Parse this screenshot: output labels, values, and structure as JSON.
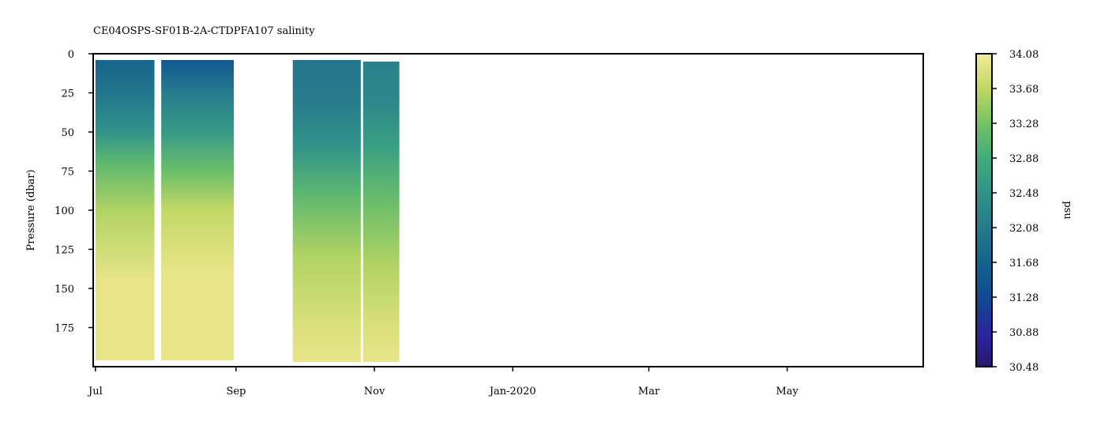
{
  "chart_data": {
    "type": "heatmap",
    "title": "CE04OSPS-SF01B-2A-CTDPFA107 salinity",
    "xlabel": "",
    "ylabel": "Pressure (dbar)",
    "x_range": [
      "2019-06-30",
      "2020-06-30"
    ],
    "x_ticks": [
      {
        "date": "2019-07-01",
        "label": "Jul"
      },
      {
        "date": "2019-09-01",
        "label": "Sep"
      },
      {
        "date": "2019-11-01",
        "label": "Nov"
      },
      {
        "date": "2020-01-01",
        "label": "Jan-2020"
      },
      {
        "date": "2020-03-01",
        "label": "Mar"
      },
      {
        "date": "2020-05-01",
        "label": "May"
      }
    ],
    "y_range": [
      0,
      200
    ],
    "y_inverted": true,
    "y_ticks": [
      0,
      25,
      50,
      75,
      100,
      125,
      150,
      175
    ],
    "colorbar": {
      "label": "psu",
      "range": [
        30.48,
        34.08
      ],
      "ticks": [
        30.48,
        30.88,
        31.28,
        31.68,
        32.08,
        32.48,
        32.88,
        33.28,
        33.68,
        34.08
      ],
      "colormap": "haline"
    },
    "profile_segments": [
      {
        "start": "2019-07-01",
        "end": "2019-07-27",
        "top": 4,
        "bottom": 196,
        "profile": [
          [
            4,
            31.7
          ],
          [
            25,
            32.0
          ],
          [
            50,
            32.5
          ],
          [
            70,
            33.1
          ],
          [
            100,
            33.6
          ],
          [
            145,
            34.0
          ],
          [
            196,
            34.0
          ]
        ]
      },
      {
        "start": "2019-07-30",
        "end": "2019-08-31",
        "top": 4,
        "bottom": 196,
        "profile": [
          [
            4,
            31.5
          ],
          [
            25,
            32.1
          ],
          [
            50,
            32.6
          ],
          [
            75,
            33.2
          ],
          [
            100,
            33.7
          ],
          [
            140,
            34.0
          ],
          [
            196,
            34.0
          ]
        ]
      },
      {
        "start": "2019-09-26",
        "end": "2019-10-26",
        "top": 4,
        "bottom": 197,
        "profile": [
          [
            4,
            32.0
          ],
          [
            30,
            32.1
          ],
          [
            60,
            32.5
          ],
          [
            90,
            33.1
          ],
          [
            130,
            33.6
          ],
          [
            175,
            33.9
          ],
          [
            197,
            34.0
          ]
        ]
      },
      {
        "start": "2019-10-27",
        "end": "2019-11-12",
        "top": 5,
        "bottom": 197,
        "profile": [
          [
            5,
            32.2
          ],
          [
            30,
            32.3
          ],
          [
            60,
            32.7
          ],
          [
            95,
            33.2
          ],
          [
            135,
            33.6
          ],
          [
            175,
            33.9
          ],
          [
            197,
            34.0
          ]
        ]
      }
    ]
  }
}
